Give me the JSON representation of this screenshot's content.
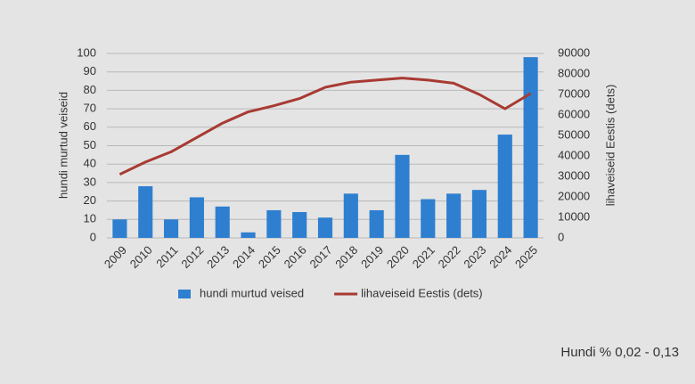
{
  "chart_data": {
    "type": "combo",
    "categories": [
      "2009",
      "2010",
      "2011",
      "2012",
      "2013",
      "2014",
      "2015",
      "2016",
      "2017",
      "2018",
      "2019",
      "2020",
      "2021",
      "2022",
      "2023",
      "2024",
      "2025"
    ],
    "series": [
      {
        "name": "hundi murtud veised",
        "type": "bar",
        "color": "#2e7fd0",
        "values": [
          10,
          28,
          10,
          22,
          17,
          3,
          15,
          14,
          11,
          24,
          15,
          45,
          21,
          24,
          26,
          56,
          98
        ]
      },
      {
        "name": "lihaveiseid Eestis (dets)",
        "type": "line",
        "axis": "y2",
        "color": "#a83a32",
        "values": [
          31000,
          37000,
          42000,
          49000,
          56000,
          61500,
          64500,
          68000,
          73500,
          76000,
          77000,
          78000,
          77000,
          75500,
          70000,
          63000,
          70500
        ]
      }
    ],
    "ylabel": "hundi murtud veiseid",
    "y2label": "lihaveiseid Eestis (dets)",
    "ylim": [
      0,
      100
    ],
    "yticks": [
      0,
      10,
      20,
      30,
      40,
      50,
      60,
      70,
      80,
      90,
      100
    ],
    "y2lim": [
      0,
      90000
    ],
    "y2ticks": [
      0,
      10000,
      20000,
      30000,
      40000,
      50000,
      60000,
      70000,
      80000,
      90000
    ],
    "grid": true,
    "legend": "bottom",
    "annotation": "Hundi %  0,02 - 0,13"
  }
}
